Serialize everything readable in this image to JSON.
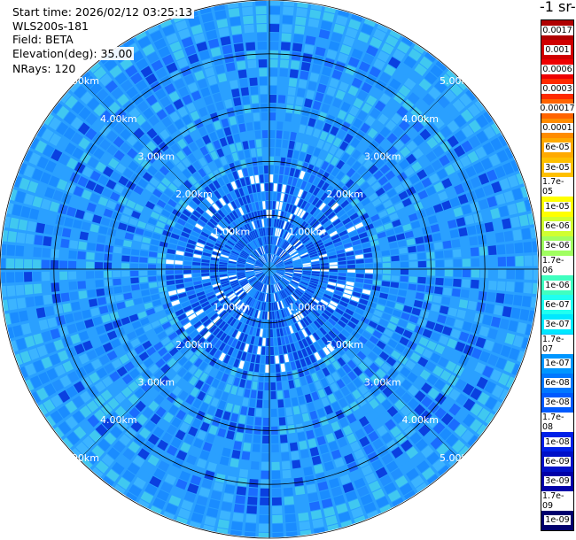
{
  "info": {
    "start_time": "Start time: 2026/02/12 03:25:13",
    "device": "WLS200s-181",
    "field": "Field: BETA",
    "elevation": "Elevation(deg): 35.00",
    "nrays": "NRays: 120"
  },
  "chart_data": {
    "type": "heatmap",
    "projection": "polar (PPI scan)",
    "field": "BETA",
    "elevation_deg": 35.0,
    "n_rays": 120,
    "range_rings_km": [
      1,
      2,
      3,
      4,
      5
    ],
    "range_ring_labels": [
      "1.00km",
      "2.00km",
      "3.00km",
      "4.00km",
      "5.00km"
    ],
    "colorbar_title": "-1 sr-",
    "colorbar_ticks": [
      "0.0017",
      "0.001",
      "0.0006",
      "0.0003",
      "0.00017",
      "0.0001",
      "6e-05",
      "3e-05",
      "1.7e-05",
      "1e-05",
      "6e-06",
      "3e-06",
      "1.7e-06",
      "1e-06",
      "6e-07",
      "3e-07",
      "1.7e-07",
      "1e-07",
      "6e-08",
      "3e-08",
      "1.7e-08",
      "1e-08",
      "6e-09",
      "3e-09",
      "1.7e-09",
      "1e-09"
    ],
    "colorbar_colors": [
      "#b00000",
      "#d00000",
      "#ee0000",
      "#ff2a00",
      "#ff6400",
      "#ff8c00",
      "#ffaa00",
      "#ffc000",
      "#ffe000",
      "#ffff00",
      "#d0ff30",
      "#a0ff60",
      "#60ff90",
      "#40ffc0",
      "#20fff0",
      "#00e8ff",
      "#00c0ff",
      "#0096ff",
      "#0078ff",
      "#005aff",
      "#003cff",
      "#0020e8",
      "#0010c8",
      "#0000a8",
      "#000090",
      "#00006e"
    ],
    "dominant_range_values": [
      "1e-07",
      "6e-08",
      "3e-08"
    ]
  }
}
